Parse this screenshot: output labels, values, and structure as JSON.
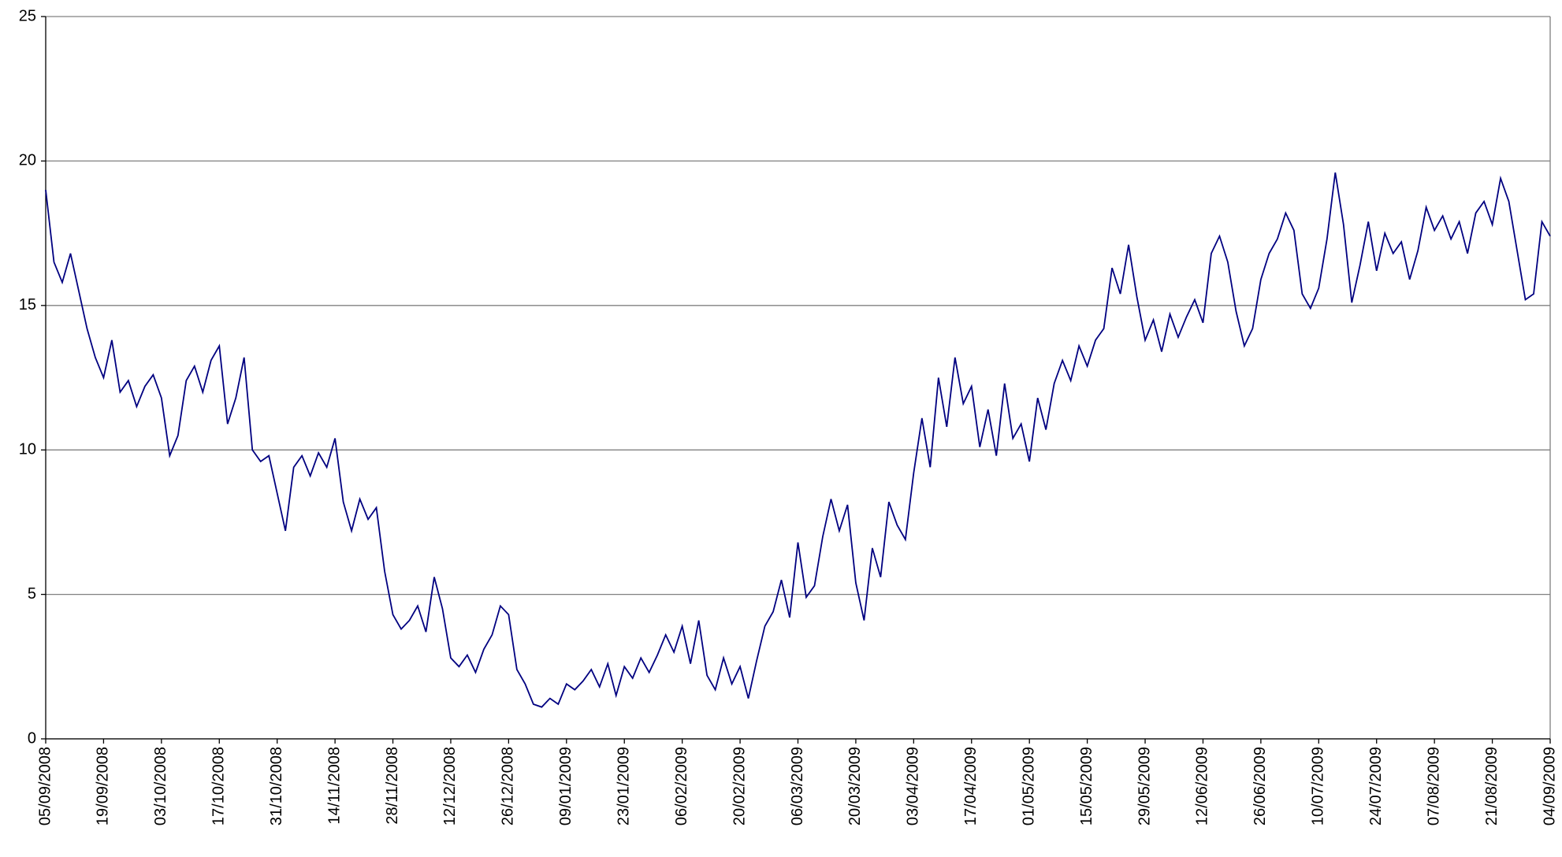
{
  "chart_data": {
    "type": "line",
    "color": "#000080",
    "grid": true,
    "ylim": [
      0,
      25
    ],
    "yticks": [
      0,
      5,
      10,
      15,
      20,
      25
    ],
    "xlim": [
      "05/09/2008",
      "04/09/2009"
    ],
    "xticks": [
      "05/09/2008",
      "19/09/2008",
      "03/10/2008",
      "17/10/2008",
      "31/10/2008",
      "14/11/2008",
      "28/11/2008",
      "12/12/2008",
      "26/12/2008",
      "09/01/2009",
      "23/01/2009",
      "06/02/2009",
      "20/02/2009",
      "06/03/2009",
      "20/03/2009",
      "03/04/2009",
      "17/04/2009",
      "01/05/2009",
      "15/05/2009",
      "29/05/2009",
      "12/06/2009",
      "26/06/2009",
      "10/07/2009",
      "24/07/2009",
      "07/08/2009",
      "21/08/2009",
      "04/09/2009"
    ],
    "x": [
      "05/09/2008",
      "07/09/2008",
      "09/09/2008",
      "11/09/2008",
      "13/09/2008",
      "15/09/2008",
      "17/09/2008",
      "19/09/2008",
      "21/09/2008",
      "23/09/2008",
      "25/09/2008",
      "27/09/2008",
      "29/09/2008",
      "01/10/2008",
      "03/10/2008",
      "05/10/2008",
      "07/10/2008",
      "09/10/2008",
      "11/10/2008",
      "13/10/2008",
      "15/10/2008",
      "17/10/2008",
      "19/10/2008",
      "21/10/2008",
      "23/10/2008",
      "25/10/2008",
      "27/10/2008",
      "29/10/2008",
      "31/10/2008",
      "02/11/2008",
      "04/11/2008",
      "06/11/2008",
      "08/11/2008",
      "10/11/2008",
      "12/11/2008",
      "14/11/2008",
      "16/11/2008",
      "18/11/2008",
      "20/11/2008",
      "22/11/2008",
      "24/11/2008",
      "26/11/2008",
      "28/11/2008",
      "30/11/2008",
      "02/12/2008",
      "04/12/2008",
      "06/12/2008",
      "08/12/2008",
      "10/12/2008",
      "12/12/2008",
      "14/12/2008",
      "16/12/2008",
      "18/12/2008",
      "20/12/2008",
      "22/12/2008",
      "24/12/2008",
      "26/12/2008",
      "28/12/2008",
      "30/12/2008",
      "01/01/2009",
      "03/01/2009",
      "05/01/2009",
      "07/01/2009",
      "09/01/2009",
      "11/01/2009",
      "13/01/2009",
      "15/01/2009",
      "17/01/2009",
      "19/01/2009",
      "21/01/2009",
      "23/01/2009",
      "25/01/2009",
      "27/01/2009",
      "29/01/2009",
      "31/01/2009",
      "02/02/2009",
      "04/02/2009",
      "06/02/2009",
      "08/02/2009",
      "10/02/2009",
      "12/02/2009",
      "14/02/2009",
      "16/02/2009",
      "18/02/2009",
      "20/02/2009",
      "22/02/2009",
      "24/02/2009",
      "26/02/2009",
      "28/02/2009",
      "02/03/2009",
      "04/03/2009",
      "06/03/2009",
      "08/03/2009",
      "10/03/2009",
      "12/03/2009",
      "14/03/2009",
      "16/03/2009",
      "18/03/2009",
      "20/03/2009",
      "22/03/2009",
      "24/03/2009",
      "26/03/2009",
      "28/03/2009",
      "30/03/2009",
      "01/04/2009",
      "03/04/2009",
      "05/04/2009",
      "07/04/2009",
      "09/04/2009",
      "11/04/2009",
      "13/04/2009",
      "15/04/2009",
      "17/04/2009",
      "19/04/2009",
      "21/04/2009",
      "23/04/2009",
      "25/04/2009",
      "27/04/2009",
      "29/04/2009",
      "01/05/2009",
      "03/05/2009",
      "05/05/2009",
      "07/05/2009",
      "09/05/2009",
      "11/05/2009",
      "13/05/2009",
      "15/05/2009",
      "17/05/2009",
      "19/05/2009",
      "21/05/2009",
      "23/05/2009",
      "25/05/2009",
      "27/05/2009",
      "29/05/2009",
      "31/05/2009",
      "02/06/2009",
      "04/06/2009",
      "06/06/2009",
      "08/06/2009",
      "10/06/2009",
      "12/06/2009",
      "14/06/2009",
      "16/06/2009",
      "18/06/2009",
      "20/06/2009",
      "22/06/2009",
      "24/06/2009",
      "26/06/2009",
      "28/06/2009",
      "30/06/2009",
      "02/07/2009",
      "04/07/2009",
      "06/07/2009",
      "08/07/2009",
      "10/07/2009",
      "12/07/2009",
      "14/07/2009",
      "16/07/2009",
      "18/07/2009",
      "20/07/2009",
      "22/07/2009",
      "24/07/2009",
      "26/07/2009",
      "28/07/2009",
      "30/07/2009",
      "01/08/2009",
      "03/08/2009",
      "05/08/2009",
      "07/08/2009",
      "09/08/2009",
      "11/08/2009",
      "13/08/2009",
      "15/08/2009",
      "17/08/2009",
      "19/08/2009",
      "21/08/2009",
      "23/08/2009",
      "25/08/2009",
      "27/08/2009",
      "29/08/2009",
      "31/08/2009",
      "02/09/2009",
      "04/09/2009"
    ],
    "values": [
      19.0,
      16.5,
      15.8,
      16.8,
      15.5,
      14.2,
      13.2,
      12.5,
      13.8,
      12.0,
      12.4,
      11.5,
      12.2,
      12.6,
      11.8,
      9.8,
      10.5,
      12.4,
      12.9,
      12.0,
      13.1,
      13.6,
      10.9,
      11.8,
      13.2,
      10.0,
      9.6,
      9.8,
      8.5,
      7.2,
      9.4,
      9.8,
      9.1,
      9.9,
      9.4,
      10.4,
      8.2,
      7.2,
      8.3,
      7.6,
      8.0,
      5.8,
      4.3,
      3.8,
      4.1,
      4.6,
      3.7,
      5.6,
      4.5,
      2.8,
      2.5,
      2.9,
      2.3,
      3.1,
      3.6,
      4.6,
      4.3,
      2.4,
      1.9,
      1.2,
      1.1,
      1.4,
      1.2,
      1.9,
      1.7,
      2.0,
      2.4,
      1.8,
      2.6,
      1.5,
      2.5,
      2.1,
      2.8,
      2.3,
      2.9,
      3.6,
      3.0,
      3.9,
      2.6,
      4.1,
      2.2,
      1.7,
      2.8,
      1.9,
      2.5,
      1.4,
      2.7,
      3.9,
      4.4,
      5.5,
      4.2,
      6.8,
      4.9,
      5.3,
      7.0,
      8.3,
      7.2,
      8.1,
      5.4,
      4.1,
      6.6,
      5.6,
      8.2,
      7.4,
      6.9,
      9.2,
      11.1,
      9.4,
      12.5,
      10.8,
      13.2,
      11.6,
      12.2,
      10.1,
      11.4,
      9.8,
      12.3,
      10.4,
      10.9,
      9.6,
      11.8,
      10.7,
      12.3,
      13.1,
      12.4,
      13.6,
      12.9,
      13.8,
      14.2,
      16.3,
      15.4,
      17.1,
      15.3,
      13.8,
      14.5,
      13.4,
      14.7,
      13.9,
      14.6,
      15.2,
      14.4,
      16.8,
      17.4,
      16.5,
      14.8,
      13.6,
      14.2,
      15.9,
      16.8,
      17.3,
      18.2,
      17.6,
      15.4,
      14.9,
      15.6,
      17.3,
      19.6,
      17.8,
      15.1,
      16.4,
      17.9,
      16.2,
      17.5,
      16.8,
      17.2,
      15.9,
      16.9,
      18.4,
      17.6,
      18.1,
      17.3,
      17.9,
      16.8,
      18.2,
      18.6,
      17.8,
      19.4,
      18.6,
      16.9,
      15.2,
      15.4,
      17.9,
      17.4
    ]
  }
}
